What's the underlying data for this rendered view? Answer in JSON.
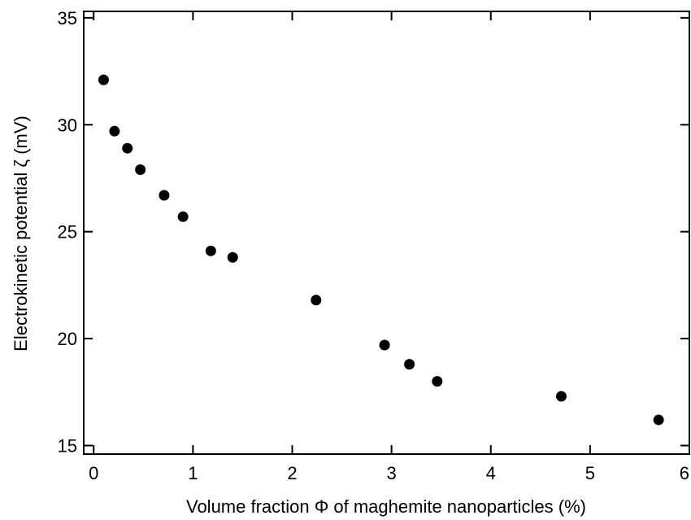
{
  "chart_data": {
    "type": "scatter",
    "title": "",
    "xlabel": "Volume fraction Φ  of maghemite nanoparticles (%)",
    "ylabel": "Electrokinetic potential  ζ (mV)",
    "xlim": [
      -0.1,
      6
    ],
    "ylim": [
      14.6,
      35.3
    ],
    "xticks": [
      0,
      1,
      2,
      3,
      4,
      5,
      6
    ],
    "yticks": [
      15,
      20,
      25,
      30,
      35
    ],
    "grid": false,
    "legend": "none",
    "marker_color": "#000000",
    "series": [
      {
        "x": [
          0.1,
          0.21,
          0.34,
          0.47,
          0.71,
          0.9,
          1.18,
          1.4,
          2.24,
          2.93,
          3.18,
          3.46,
          4.71,
          5.69
        ],
        "y": [
          32.1,
          29.7,
          28.9,
          27.9,
          26.7,
          25.7,
          24.1,
          23.8,
          21.8,
          19.7,
          18.8,
          18.0,
          17.3,
          16.2
        ]
      }
    ]
  }
}
